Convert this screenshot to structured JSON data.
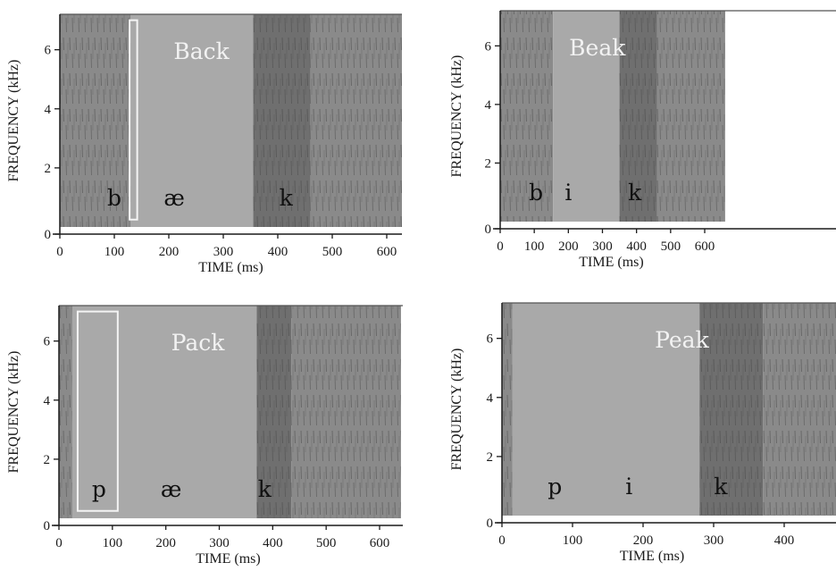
{
  "colors": {
    "background": "#ffffff",
    "vowel_region": "#a9a9a9",
    "noise_region": "#8a8a8a",
    "burst_region": "#6f6f6f",
    "highlight_box": "#f4f4f4",
    "axis": "#1a1a1a"
  },
  "chart_data": [
    {
      "type": "spectrogram",
      "word": "Back",
      "xlabel": "TIME (ms)",
      "ylabel": "FREQUENCY (kHz)",
      "xlim": [
        0,
        640
      ],
      "ylim": [
        0,
        7.2
      ],
      "xticks": [
        0,
        100,
        200,
        300,
        400,
        500,
        600
      ],
      "yticks": [
        0,
        2,
        4,
        6
      ],
      "phonemes": [
        {
          "symbol": "b",
          "time": 100
        },
        {
          "symbol": "æ",
          "time": 210
        },
        {
          "symbol": "k",
          "time": 415
        }
      ],
      "segments": [
        {
          "kind": "noise",
          "start": 0,
          "end": 130
        },
        {
          "kind": "vowel",
          "start": 130,
          "end": 355
        },
        {
          "kind": "burst",
          "start": 355,
          "end": 460
        },
        {
          "kind": "noise",
          "start": 460,
          "end": 640
        }
      ],
      "highlight": {
        "start": 128,
        "end": 142,
        "ymin": 0.25,
        "ymax": 7.0
      }
    },
    {
      "type": "spectrogram",
      "word": "Beak",
      "xlabel": "TIME (ms)",
      "ylabel": "FREQUENCY (kHz)",
      "xlim": [
        0,
        660
      ],
      "ylim": [
        0,
        7.2
      ],
      "xticks": [
        0,
        100,
        200,
        300,
        400,
        500,
        600
      ],
      "yticks": [
        0,
        2,
        4,
        6
      ],
      "phonemes": [
        {
          "symbol": "b",
          "time": 105
        },
        {
          "symbol": "i",
          "time": 200
        },
        {
          "symbol": "k",
          "time": 395
        }
      ],
      "segments": [
        {
          "kind": "noise",
          "start": 0,
          "end": 155
        },
        {
          "kind": "vowel",
          "start": 155,
          "end": 350
        },
        {
          "kind": "burst",
          "start": 350,
          "end": 460
        },
        {
          "kind": "noise",
          "start": 460,
          "end": 660
        }
      ],
      "highlight": null
    },
    {
      "type": "spectrogram",
      "word": "Pack",
      "xlabel": "TIME (ms)",
      "ylabel": "FREQUENCY (kHz)",
      "xlim": [
        0,
        640
      ],
      "ylim": [
        0,
        7.2
      ],
      "xticks": [
        0,
        100,
        200,
        300,
        400,
        500,
        600
      ],
      "yticks": [
        0,
        2,
        4,
        6
      ],
      "phonemes": [
        {
          "symbol": "p",
          "time": 75
        },
        {
          "symbol": "æ",
          "time": 210
        },
        {
          "symbol": "k",
          "time": 385
        }
      ],
      "segments": [
        {
          "kind": "noise",
          "start": 0,
          "end": 25
        },
        {
          "kind": "vowel",
          "start": 25,
          "end": 370
        },
        {
          "kind": "burst",
          "start": 370,
          "end": 435
        },
        {
          "kind": "noise",
          "start": 435,
          "end": 640
        }
      ],
      "highlight": {
        "start": 35,
        "end": 110,
        "ymin": 0.25,
        "ymax": 7.0
      }
    },
    {
      "type": "spectrogram",
      "word": "Peak",
      "xlabel": "TIME (ms)",
      "ylabel": "FREQUENCY (kHz)",
      "xlim": [
        0,
        480
      ],
      "ylim": [
        0,
        7.2
      ],
      "xticks": [
        0,
        100,
        200,
        300,
        400
      ],
      "yticks": [
        0,
        2,
        4,
        6
      ],
      "phonemes": [
        {
          "symbol": "p",
          "time": 75
        },
        {
          "symbol": "i",
          "time": 180
        },
        {
          "symbol": "k",
          "time": 310
        }
      ],
      "segments": [
        {
          "kind": "noise",
          "start": 0,
          "end": 15
        },
        {
          "kind": "vowel",
          "start": 15,
          "end": 280
        },
        {
          "kind": "burst",
          "start": 280,
          "end": 370
        },
        {
          "kind": "noise",
          "start": 370,
          "end": 480
        }
      ],
      "highlight": null
    }
  ]
}
